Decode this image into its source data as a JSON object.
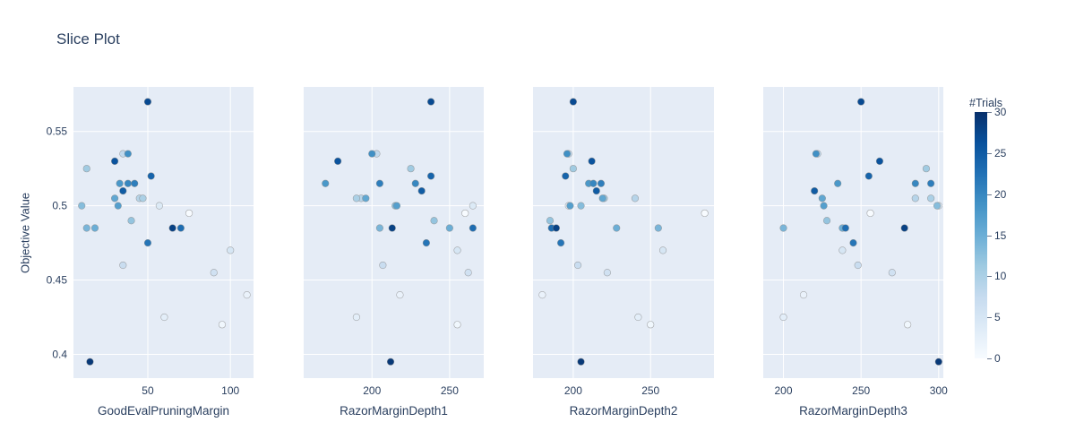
{
  "chart_data": {
    "type": "scatter",
    "title": "Slice Plot",
    "ylabel": "Objective Value",
    "plot_bgcolor": "#e5ecf6",
    "font_color": "#2a3f5f",
    "grid_color": "#ffffff",
    "marker_line_color": "#888888",
    "yaxis": {
      "range": [
        0.384,
        0.58
      ],
      "ticks": [
        0.4,
        0.45,
        0.5,
        0.55
      ],
      "tick_labels": [
        "0.4",
        "0.45",
        "0.5",
        "0.55"
      ]
    },
    "colorbar": {
      "title": "#Trials",
      "min": 0,
      "max": 30,
      "ticks": [
        0,
        5,
        10,
        15,
        20,
        25,
        30
      ],
      "colorscale": [
        [
          0,
          "#f7fbff"
        ],
        [
          0.125,
          "#deebf7"
        ],
        [
          0.25,
          "#c6dbef"
        ],
        [
          0.375,
          "#9ecae1"
        ],
        [
          0.5,
          "#6baed6"
        ],
        [
          0.625,
          "#4292c6"
        ],
        [
          0.75,
          "#2171b5"
        ],
        [
          0.875,
          "#08519c"
        ],
        [
          1,
          "#08306b"
        ]
      ]
    },
    "subplots": [
      {
        "param": "GoodEvalPruningMargin",
        "range": [
          5,
          114
        ],
        "ticks": [
          50,
          100
        ],
        "tick_labels": [
          "50",
          "100"
        ]
      },
      {
        "param": "RazorMarginDepth1",
        "range": [
          156,
          272
        ],
        "ticks": [
          200,
          250
        ],
        "tick_labels": [
          "200",
          "250"
        ]
      },
      {
        "param": "RazorMarginDepth2",
        "range": [
          174,
          291
        ],
        "ticks": [
          200,
          250
        ],
        "tick_labels": [
          "200",
          "250"
        ]
      },
      {
        "param": "RazorMarginDepth3",
        "range": [
          187,
          303
        ],
        "ticks": [
          200,
          250,
          300
        ],
        "tick_labels": [
          "200",
          "250",
          "300"
        ]
      }
    ],
    "trials": [
      {
        "number": 0,
        "objective": 0.495,
        "params": {
          "GoodEvalPruningMargin": 75,
          "RazorMarginDepth1": 260,
          "RazorMarginDepth2": 285,
          "RazorMarginDepth3": 256
        }
      },
      {
        "number": 1,
        "objective": 0.42,
        "params": {
          "GoodEvalPruningMargin": 95,
          "RazorMarginDepth1": 255,
          "RazorMarginDepth2": 250,
          "RazorMarginDepth3": 280
        }
      },
      {
        "number": 2,
        "objective": 0.44,
        "params": {
          "GoodEvalPruningMargin": 110,
          "RazorMarginDepth1": 218,
          "RazorMarginDepth2": 180,
          "RazorMarginDepth3": 213
        }
      },
      {
        "number": 3,
        "objective": 0.425,
        "params": {
          "GoodEvalPruningMargin": 60,
          "RazorMarginDepth1": 190,
          "RazorMarginDepth2": 242,
          "RazorMarginDepth3": 200
        }
      },
      {
        "number": 4,
        "objective": 0.5,
        "params": {
          "GoodEvalPruningMargin": 57,
          "RazorMarginDepth1": 265,
          "RazorMarginDepth2": 197,
          "RazorMarginDepth3": 300
        }
      },
      {
        "number": 5,
        "objective": 0.47,
        "params": {
          "GoodEvalPruningMargin": 100,
          "RazorMarginDepth1": 255,
          "RazorMarginDepth2": 258,
          "RazorMarginDepth3": 238
        }
      },
      {
        "number": 6,
        "objective": 0.455,
        "params": {
          "GoodEvalPruningMargin": 90,
          "RazorMarginDepth1": 262,
          "RazorMarginDepth2": 222,
          "RazorMarginDepth3": 270
        }
      },
      {
        "number": 7,
        "objective": 0.46,
        "params": {
          "GoodEvalPruningMargin": 35,
          "RazorMarginDepth1": 207,
          "RazorMarginDepth2": 203,
          "RazorMarginDepth3": 248
        }
      },
      {
        "number": 8,
        "objective": 0.535,
        "params": {
          "GoodEvalPruningMargin": 35,
          "RazorMarginDepth1": 203,
          "RazorMarginDepth2": 197,
          "RazorMarginDepth3": 222
        }
      },
      {
        "number": 9,
        "objective": 0.505,
        "params": {
          "GoodEvalPruningMargin": 45,
          "RazorMarginDepth1": 193,
          "RazorMarginDepth2": 240,
          "RazorMarginDepth3": 285
        }
      },
      {
        "number": 10,
        "objective": 0.505,
        "params": {
          "GoodEvalPruningMargin": 47,
          "RazorMarginDepth1": 190,
          "RazorMarginDepth2": 220,
          "RazorMarginDepth3": 295
        }
      },
      {
        "number": 11,
        "objective": 0.525,
        "params": {
          "GoodEvalPruningMargin": 13,
          "RazorMarginDepth1": 225,
          "RazorMarginDepth2": 200,
          "RazorMarginDepth3": 292
        }
      },
      {
        "number": 12,
        "objective": 0.49,
        "params": {
          "GoodEvalPruningMargin": 40,
          "RazorMarginDepth1": 240,
          "RazorMarginDepth2": 185,
          "RazorMarginDepth3": 228
        }
      },
      {
        "number": 13,
        "objective": 0.5,
        "params": {
          "GoodEvalPruningMargin": 10,
          "RazorMarginDepth1": 215,
          "RazorMarginDepth2": 205,
          "RazorMarginDepth3": 299
        }
      },
      {
        "number": 14,
        "objective": 0.485,
        "params": {
          "GoodEvalPruningMargin": 13,
          "RazorMarginDepth1": 205,
          "RazorMarginDepth2": 255,
          "RazorMarginDepth3": 200
        }
      },
      {
        "number": 15,
        "objective": 0.485,
        "params": {
          "GoodEvalPruningMargin": 18,
          "RazorMarginDepth1": 250,
          "RazorMarginDepth2": 228,
          "RazorMarginDepth3": 238
        }
      },
      {
        "number": 16,
        "objective": 0.505,
        "params": {
          "GoodEvalPruningMargin": 30,
          "RazorMarginDepth1": 196,
          "RazorMarginDepth2": 219,
          "RazorMarginDepth3": 225
        }
      },
      {
        "number": 17,
        "objective": 0.5,
        "params": {
          "GoodEvalPruningMargin": 32,
          "RazorMarginDepth1": 216,
          "RazorMarginDepth2": 198,
          "RazorMarginDepth3": 226
        }
      },
      {
        "number": 18,
        "objective": 0.515,
        "params": {
          "GoodEvalPruningMargin": 33,
          "RazorMarginDepth1": 170,
          "RazorMarginDepth2": 210,
          "RazorMarginDepth3": 235
        }
      },
      {
        "number": 19,
        "objective": 0.535,
        "params": {
          "GoodEvalPruningMargin": 38,
          "RazorMarginDepth1": 200,
          "RazorMarginDepth2": 196,
          "RazorMarginDepth3": 221
        }
      },
      {
        "number": 20,
        "objective": 0.515,
        "params": {
          "GoodEvalPruningMargin": 38,
          "RazorMarginDepth1": 228,
          "RazorMarginDepth2": 213,
          "RazorMarginDepth3": 285
        }
      },
      {
        "number": 21,
        "objective": 0.515,
        "params": {
          "GoodEvalPruningMargin": 42,
          "RazorMarginDepth1": 205,
          "RazorMarginDepth2": 218,
          "RazorMarginDepth3": 295
        }
      },
      {
        "number": 22,
        "objective": 0.475,
        "params": {
          "GoodEvalPruningMargin": 50,
          "RazorMarginDepth1": 235,
          "RazorMarginDepth2": 192,
          "RazorMarginDepth3": 245
        }
      },
      {
        "number": 23,
        "objective": 0.485,
        "params": {
          "GoodEvalPruningMargin": 70,
          "RazorMarginDepth1": 265,
          "RazorMarginDepth2": 186,
          "RazorMarginDepth3": 240
        }
      },
      {
        "number": 24,
        "objective": 0.52,
        "params": {
          "GoodEvalPruningMargin": 52,
          "RazorMarginDepth1": 238,
          "RazorMarginDepth2": 195,
          "RazorMarginDepth3": 255
        }
      },
      {
        "number": 25,
        "objective": 0.51,
        "params": {
          "GoodEvalPruningMargin": 35,
          "RazorMarginDepth1": 232,
          "RazorMarginDepth2": 215,
          "RazorMarginDepth3": 220
        }
      },
      {
        "number": 26,
        "objective": 0.53,
        "params": {
          "GoodEvalPruningMargin": 30,
          "RazorMarginDepth1": 178,
          "RazorMarginDepth2": 212,
          "RazorMarginDepth3": 262
        }
      },
      {
        "number": 27,
        "objective": 0.57,
        "params": {
          "GoodEvalPruningMargin": 50,
          "RazorMarginDepth1": 238,
          "RazorMarginDepth2": 200,
          "RazorMarginDepth3": 250
        }
      },
      {
        "number": 28,
        "objective": 0.485,
        "params": {
          "GoodEvalPruningMargin": 65,
          "RazorMarginDepth1": 213,
          "RazorMarginDepth2": 189,
          "RazorMarginDepth3": 278
        }
      },
      {
        "number": 29,
        "objective": 0.395,
        "params": {
          "GoodEvalPruningMargin": 15,
          "RazorMarginDepth1": 212,
          "RazorMarginDepth2": 205,
          "RazorMarginDepth3": 300
        }
      }
    ]
  }
}
